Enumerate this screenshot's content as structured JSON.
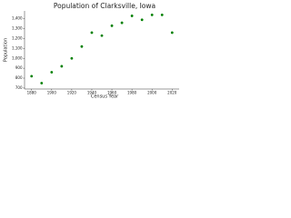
{
  "chart_data": {
    "type": "scatter",
    "title": "Population of Clarksville, Iowa",
    "x_label": "Census Year",
    "y_label": "Population",
    "x": [
      1880,
      1890,
      1900,
      1910,
      1920,
      1930,
      1940,
      1950,
      1960,
      1970,
      1980,
      1990,
      2000,
      2010,
      2020
    ],
    "values": [
      820,
      750,
      860,
      920,
      1000,
      1120,
      1260,
      1230,
      1330,
      1360,
      1430,
      1390,
      1440,
      1440,
      1260
    ],
    "color": "#008000",
    "xlim": [
      1873,
      2027
    ],
    "xticks": [
      1880,
      1900,
      1920,
      1940,
      1960,
      1980,
      2000,
      2020
    ],
    "ylim": [
      690,
      1480
    ],
    "yticks": [
      {
        "value": 700,
        "label": "700"
      },
      {
        "value": 800,
        "label": "800"
      },
      {
        "value": 900,
        "label": "900"
      },
      {
        "value": 1000,
        "label": "1,000"
      },
      {
        "value": 1100,
        "label": "1,100"
      },
      {
        "value": 1200,
        "label": "1,200"
      },
      {
        "value": 1300,
        "label": "1,300"
      },
      {
        "value": 1400,
        "label": "1,400"
      }
    ]
  }
}
